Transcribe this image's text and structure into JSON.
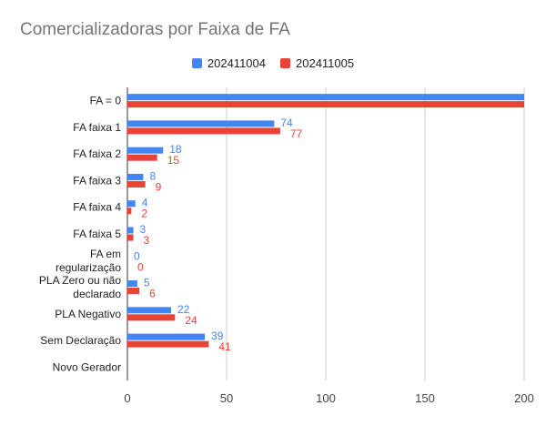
{
  "chart_data": {
    "type": "bar",
    "orientation": "horizontal",
    "title": "Comercializadoras por Faixa de FA",
    "xlabel": "",
    "ylabel": "",
    "xlim": [
      0,
      200
    ],
    "x_ticks": [
      "0",
      "50",
      "100",
      "150",
      "200"
    ],
    "grid": true,
    "legend_position": "top",
    "categories": [
      "FA = 0",
      "FA faixa 1",
      "FA faixa 2",
      "FA faixa 3",
      "FA faixa 4",
      "FA faixa 5",
      "FA em regularização",
      "PLA Zero ou não declarado",
      "PLA Negativo",
      "Sem Declaração",
      "Novo Gerador"
    ],
    "category_lines": [
      [
        "FA = 0"
      ],
      [
        "FA faixa 1"
      ],
      [
        "FA faixa 2"
      ],
      [
        "FA faixa 3"
      ],
      [
        "FA faixa 4"
      ],
      [
        "FA faixa 5"
      ],
      [
        "FA em",
        "regularização"
      ],
      [
        "PLA Zero ou não",
        "declarado"
      ],
      [
        "PLA Negativo"
      ],
      [
        "Sem Declaração"
      ],
      [
        "Novo Gerador"
      ]
    ],
    "series": [
      {
        "name": "202411004",
        "color": "#4285f4",
        "values": [
          200,
          74,
          18,
          8,
          4,
          3,
          0,
          5,
          22,
          39,
          null
        ],
        "labels": [
          "",
          "74",
          "18",
          "8",
          "4",
          "3",
          "0",
          "5",
          "22",
          "39",
          ""
        ]
      },
      {
        "name": "202411005",
        "color": "#ea4335",
        "values": [
          200,
          77,
          15,
          9,
          2,
          3,
          0,
          6,
          24,
          41,
          null
        ],
        "labels": [
          "",
          "77",
          "15",
          "9",
          "2",
          "3",
          "0",
          "6",
          "24",
          "41",
          ""
        ]
      }
    ]
  }
}
